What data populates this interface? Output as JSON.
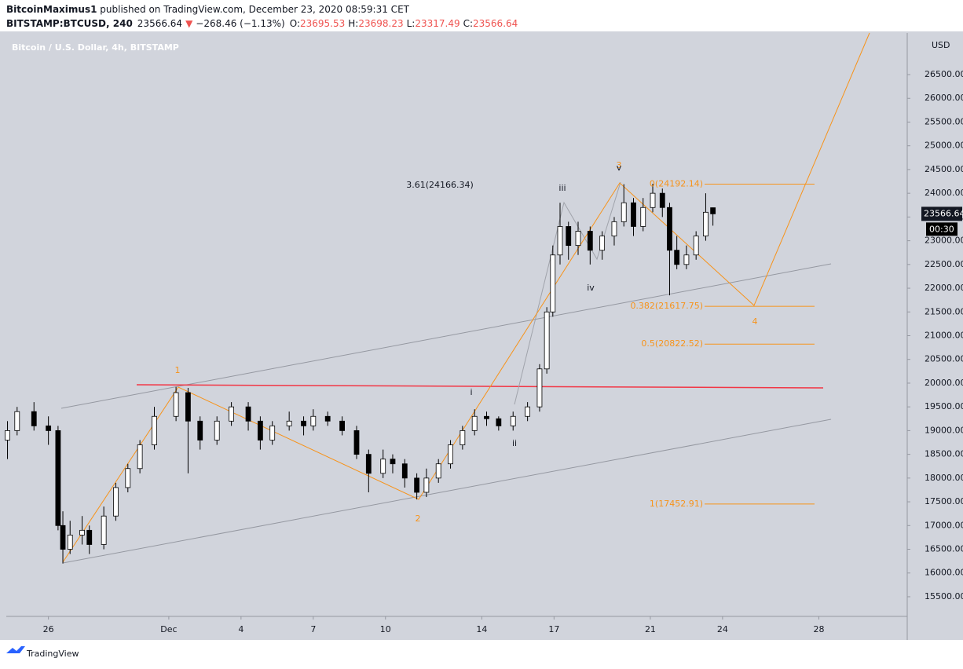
{
  "header": {
    "author": "BitcoinMaximus1",
    "published": " published on TradingView.com, December 23, 2020 08:59:31 CET",
    "symbol": "BITSTAMP:BTCUSD, 240",
    "last": "23566.64",
    "arrow": "▼",
    "change": "−268.46 (−1.13%)",
    "o_label": "O:",
    "o": "23695.53",
    "h_label": "H:",
    "h": "23698.23",
    "l_label": "L:",
    "l": "23317.49",
    "c_label": "C:",
    "c": "23566.64"
  },
  "chart_data": {
    "type": "candlestick",
    "title": "Bitcoin / U.S. Dollar, 4h, BITSTAMP",
    "y_label": "USD",
    "up_color": "#ffffff",
    "down_color": "#000000",
    "x": [
      -6.7,
      -6.3,
      -5.6,
      -5.0,
      -4.6,
      -4.4,
      -4.1,
      -3.6,
      -3.3,
      -2.7,
      -2.2,
      -1.7,
      -1.2,
      -0.6,
      0.3,
      0.8,
      1.3,
      2.0,
      2.6,
      3.3,
      3.8,
      4.3,
      5.0,
      5.6,
      6.0,
      6.6,
      7.2,
      7.8,
      8.3,
      8.9,
      9.3,
      9.8,
      10.3,
      10.7,
      11.2,
      11.7,
      12.2,
      12.7,
      13.2,
      13.7,
      14.3,
      14.9,
      15.4,
      15.7,
      15.95,
      16.25,
      16.6,
      17.0,
      17.5,
      18.0,
      18.5,
      18.9,
      19.3,
      19.7,
      20.1,
      20.5,
      20.8,
      21.1,
      21.5,
      21.9,
      22.3,
      22.6
    ],
    "open": [
      18800,
      19000,
      19400,
      19100,
      19000,
      17000,
      16500,
      16800,
      16900,
      16600,
      17200,
      17800,
      18200,
      18700,
      19300,
      19800,
      19200,
      18800,
      19200,
      19500,
      19200,
      18800,
      19100,
      19200,
      19100,
      19300,
      19200,
      19000,
      18500,
      18100,
      18400,
      18300,
      18000,
      17700,
      18000,
      18300,
      18700,
      19000,
      19300,
      19250,
      19100,
      19300,
      19500,
      20300,
      21500,
      22700,
      23300,
      22900,
      23200,
      22800,
      23100,
      23400,
      23800,
      23300,
      23700,
      24000,
      23700,
      22800,
      22500,
      22700,
      23100,
      23695.53
    ],
    "high": [
      19200,
      19500,
      19600,
      19300,
      19100,
      17300,
      17100,
      17200,
      17000,
      17400,
      17900,
      18300,
      18800,
      19500,
      19920,
      19900,
      19300,
      19300,
      19600,
      19600,
      19300,
      19200,
      19400,
      19300,
      19450,
      19400,
      19300,
      19100,
      18600,
      18600,
      18500,
      18400,
      18100,
      18200,
      18400,
      18800,
      19100,
      19450,
      19400,
      19300,
      19400,
      19600,
      20400,
      21600,
      22900,
      23800,
      23400,
      23400,
      23300,
      23200,
      23500,
      24192,
      23900,
      23900,
      24200,
      24100,
      23800,
      23100,
      22900,
      23200,
      24000,
      23698.23
    ],
    "low": [
      18400,
      18900,
      19000,
      18700,
      16900,
      16200,
      16400,
      16600,
      16400,
      16500,
      17100,
      17700,
      18100,
      18600,
      19200,
      18100,
      18600,
      18700,
      19100,
      19000,
      18600,
      18700,
      19000,
      18900,
      19000,
      19100,
      18900,
      18400,
      17700,
      18000,
      18100,
      17800,
      17550,
      17600,
      17900,
      18200,
      18600,
      18900,
      19100,
      19000,
      19000,
      19200,
      19400,
      20200,
      21400,
      22500,
      22600,
      22700,
      22500,
      22600,
      22900,
      23300,
      23100,
      23200,
      23600,
      23500,
      21850,
      22400,
      22400,
      22600,
      23000,
      23317.49
    ],
    "close": [
      19000,
      19400,
      19100,
      19000,
      17000,
      16500,
      16800,
      16900,
      16600,
      17200,
      17800,
      18200,
      18700,
      19300,
      19800,
      19200,
      18800,
      19200,
      19500,
      19200,
      18800,
      19100,
      19200,
      19100,
      19300,
      19200,
      19000,
      18500,
      18100,
      18400,
      18300,
      18000,
      17700,
      18000,
      18300,
      18700,
      19000,
      19300,
      19250,
      19100,
      19300,
      19500,
      20300,
      21500,
      22700,
      23300,
      22900,
      23200,
      22800,
      23100,
      23400,
      23800,
      23300,
      23700,
      24000,
      23700,
      22800,
      22500,
      22700,
      23100,
      23600,
      23566.64
    ],
    "xlim": [
      -6.75,
      30.67
    ],
    "ylim": [
      15086,
      27377
    ],
    "xticks": [
      {
        "value": -5,
        "label": "26"
      },
      {
        "value": 0,
        "label": "Dec"
      },
      {
        "value": 3,
        "label": "4"
      },
      {
        "value": 6,
        "label": "7"
      },
      {
        "value": 9,
        "label": "10"
      },
      {
        "value": 13,
        "label": "14"
      },
      {
        "value": 16,
        "label": "17"
      },
      {
        "value": 20,
        "label": "21"
      },
      {
        "value": 23,
        "label": "24"
      },
      {
        "value": 27,
        "label": "28"
      }
    ],
    "yticks": [
      {
        "value": 15500,
        "label": "15500.00"
      },
      {
        "value": 16000,
        "label": "16000.00"
      },
      {
        "value": 16500,
        "label": "16500.00"
      },
      {
        "value": 17000,
        "label": "17000.00"
      },
      {
        "value": 17500,
        "label": "17500.00"
      },
      {
        "value": 18000,
        "label": "18000.00"
      },
      {
        "value": 18500,
        "label": "18500.00"
      },
      {
        "value": 19000,
        "label": "19000.00"
      },
      {
        "value": 19500,
        "label": "19500.00"
      },
      {
        "value": 20000,
        "label": "20000.00"
      },
      {
        "value": 20500,
        "label": "20500.00"
      },
      {
        "value": 21000,
        "label": "21000.00"
      },
      {
        "value": 21500,
        "label": "21500.00"
      },
      {
        "value": 22000,
        "label": "22000.00"
      },
      {
        "value": 22500,
        "label": "22500.00"
      },
      {
        "value": 23000,
        "label": "23000.00"
      },
      {
        "value": 23500,
        "label": "23500.00"
      },
      {
        "value": 24000,
        "label": "24000.00"
      },
      {
        "value": 24500,
        "label": "24500.00"
      },
      {
        "value": 25000,
        "label": "25000.00"
      },
      {
        "value": 25500,
        "label": "25500.00"
      },
      {
        "value": 26000,
        "label": "26000.00"
      },
      {
        "value": 26500,
        "label": "26500.00"
      }
    ],
    "last_price": {
      "value": 23566.64,
      "label": "23566.64"
    },
    "countdown": "00:30",
    "fib_color": "#f7931a",
    "fib": [
      {
        "value": 24192.14,
        "label": "0(24192.14)"
      },
      {
        "value": 21617.75,
        "label": "0.382(21617.75)"
      },
      {
        "value": 20822.52,
        "label": "0.5(20822.52)"
      },
      {
        "value": 17452.91,
        "label": "1(17452.91)"
      }
    ],
    "annotations": [
      "1",
      "2",
      "3",
      "4",
      "i",
      "ii",
      "iii",
      "iv",
      "v",
      "3.61(24166.34)"
    ]
  },
  "footer": {
    "brand": "TradingView"
  }
}
